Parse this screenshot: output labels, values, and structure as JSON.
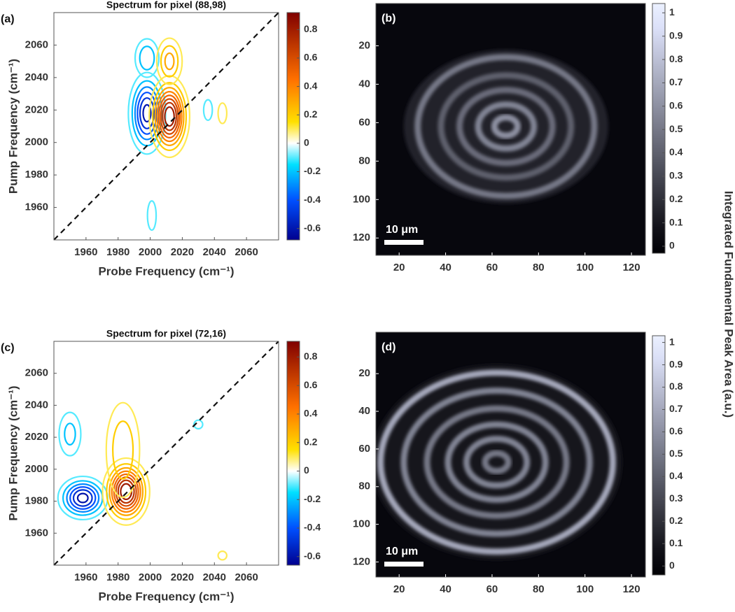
{
  "colorbar_label": "Integrated Fundamental Peak Area (a.u.)",
  "chart_data": [
    {
      "type": "contour",
      "panel_label": "(a)",
      "title": "Spectrum for pixel (88,98)",
      "xlabel": "Probe Frequency (cm⁻¹)",
      "ylabel": "Pump Frequency (cm⁻¹)",
      "xlim": [
        1940,
        2080
      ],
      "ylim": [
        1940,
        2080
      ],
      "xticks": [
        1960,
        1980,
        2000,
        2020,
        2040,
        2060
      ],
      "yticks": [
        1960,
        1980,
        2000,
        2020,
        2040,
        2060
      ],
      "diagonal": true,
      "clim": [
        -0.68,
        0.92
      ],
      "cticks": [
        -0.6,
        -0.4,
        -0.2,
        0,
        0.2,
        0.4,
        0.6,
        0.8
      ],
      "colormap": [
        {
          "value": -0.68,
          "color": "#00008f"
        },
        {
          "value": -0.4,
          "color": "#0050ff"
        },
        {
          "value": -0.15,
          "color": "#00e0ff"
        },
        {
          "value": 0,
          "color": "#ffffff"
        },
        {
          "value": 0.15,
          "color": "#ffe000"
        },
        {
          "value": 0.45,
          "color": "#ff7000"
        },
        {
          "value": 0.92,
          "color": "#800000"
        }
      ],
      "levels": [
        -0.6,
        -0.5,
        -0.4,
        -0.3,
        -0.2,
        -0.1,
        0.1,
        0.2,
        0.3,
        0.4,
        0.5,
        0.6,
        0.7,
        0.8
      ],
      "peaks": [
        {
          "x": 1998,
          "y": 2018,
          "value": -0.65,
          "sx": 6,
          "sy": 13
        },
        {
          "x": 2012,
          "y": 2016,
          "value": 0.9,
          "sx": 6,
          "sy": 12
        },
        {
          "x": 1998,
          "y": 2052,
          "value": -0.3,
          "sx": 5,
          "sy": 8
        },
        {
          "x": 2012,
          "y": 2050,
          "value": 0.35,
          "sx": 5,
          "sy": 9
        },
        {
          "x": 2036,
          "y": 2020,
          "value": -0.15,
          "sx": 3,
          "sy": 7
        },
        {
          "x": 2045,
          "y": 2018,
          "value": 0.15,
          "sx": 3,
          "sy": 7
        },
        {
          "x": 2001,
          "y": 1955,
          "value": -0.15,
          "sx": 3,
          "sy": 10
        }
      ]
    },
    {
      "type": "image",
      "panel_label": "(b)",
      "scale_bar_label": "10 μm",
      "xlim": [
        10,
        126
      ],
      "ylim": [
        129,
        -2
      ],
      "xticks": [
        20,
        40,
        60,
        80,
        100,
        120
      ],
      "yticks": [
        20,
        40,
        60,
        80,
        100,
        120
      ],
      "clim": [
        -0.03,
        1.04
      ],
      "cticks": [
        0,
        0.1,
        0.2,
        0.3,
        0.4,
        0.5,
        0.6,
        0.7,
        0.8,
        0.9,
        1
      ],
      "colormap": "bone",
      "background_value": 0.03,
      "center": [
        66,
        62
      ],
      "disc": {
        "rx": 44,
        "ry": 40,
        "value": 0.14
      },
      "rings": [
        {
          "r": 5,
          "value": 0.6
        },
        {
          "r": 12,
          "value": 0.55
        },
        {
          "r": 20,
          "value": 0.45
        },
        {
          "r": 28,
          "value": 0.4
        },
        {
          "r": 38,
          "value": 0.5
        }
      ]
    },
    {
      "type": "contour",
      "panel_label": "(c)",
      "title": "Spectrum for pixel (72,16)",
      "xlabel": "Probe Frequency (cm⁻¹)",
      "ylabel": "Pump Frequency (cm⁻¹)",
      "xlim": [
        1940,
        2080
      ],
      "ylim": [
        1940,
        2080
      ],
      "xticks": [
        1960,
        1980,
        2000,
        2020,
        2040,
        2060
      ],
      "yticks": [
        1960,
        1980,
        2000,
        2020,
        2040,
        2060
      ],
      "diagonal": true,
      "clim": [
        -0.66,
        0.91
      ],
      "cticks": [
        -0.6,
        -0.4,
        -0.2,
        0,
        0.2,
        0.4,
        0.6,
        0.8
      ],
      "colormap": [
        {
          "value": -0.66,
          "color": "#00008f"
        },
        {
          "value": -0.4,
          "color": "#0050ff"
        },
        {
          "value": -0.15,
          "color": "#00e0ff"
        },
        {
          "value": 0,
          "color": "#ffffff"
        },
        {
          "value": 0.15,
          "color": "#ffe000"
        },
        {
          "value": 0.45,
          "color": "#ff7000"
        },
        {
          "value": 0.91,
          "color": "#800000"
        }
      ],
      "levels": [
        -0.6,
        -0.5,
        -0.4,
        -0.3,
        -0.2,
        -0.1,
        0.1,
        0.2,
        0.3,
        0.4,
        0.5,
        0.6,
        0.7,
        0.8
      ],
      "peaks": [
        {
          "x": 1958,
          "y": 1982,
          "value": -0.65,
          "sx": 8,
          "sy": 7
        },
        {
          "x": 1950,
          "y": 2022,
          "value": -0.25,
          "sx": 5,
          "sy": 10
        },
        {
          "x": 1985,
          "y": 1986,
          "value": 0.9,
          "sx": 7,
          "sy": 10
        },
        {
          "x": 1983,
          "y": 2012,
          "value": 0.3,
          "sx": 7,
          "sy": 20
        },
        {
          "x": 2030,
          "y": 2028,
          "value": -0.15,
          "sx": 3,
          "sy": 3
        },
        {
          "x": 2045,
          "y": 1946,
          "value": 0.15,
          "sx": 3,
          "sy": 3
        }
      ]
    },
    {
      "type": "image",
      "panel_label": "(d)",
      "scale_bar_label": "10 μm",
      "xlim": [
        10,
        126
      ],
      "ylim": [
        128,
        -2
      ],
      "xticks": [
        20,
        40,
        60,
        80,
        100,
        120
      ],
      "yticks": [
        20,
        40,
        60,
        80,
        100,
        120
      ],
      "clim": [
        -0.04,
        1.03
      ],
      "cticks": [
        0,
        0.1,
        0.2,
        0.3,
        0.4,
        0.5,
        0.6,
        0.7,
        0.8,
        0.9,
        1
      ],
      "colormap": "bone",
      "background_value": 0.03,
      "center": [
        62,
        67
      ],
      "disc": {
        "rx": 54,
        "ry": 52,
        "value": 0.1
      },
      "rings": [
        {
          "r": 5,
          "value": 0.5
        },
        {
          "r": 13,
          "value": 0.55
        },
        {
          "r": 21,
          "value": 0.55
        },
        {
          "r": 30,
          "value": 0.5
        },
        {
          "r": 40,
          "value": 0.55
        },
        {
          "r": 50,
          "value": 0.7
        }
      ]
    }
  ]
}
